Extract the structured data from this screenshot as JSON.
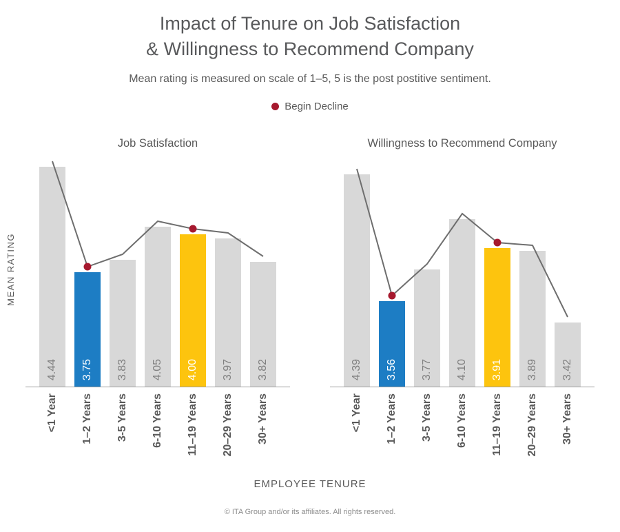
{
  "header": {
    "title_line1": "Impact of Tenure on Job Satisfaction",
    "title_line2": "& Willingness to Recommend Company",
    "subtitle": "Mean rating is measured on scale of 1–5, 5 is the post postitive sentiment."
  },
  "legend": {
    "label": "Begin Decline"
  },
  "axes": {
    "y_label": "MEAN RATING",
    "x_label": "EMPLOYEE TENURE"
  },
  "footer": {
    "copyright": "© ITA Group and/or its affiliates. All rights reserved."
  },
  "colors": {
    "bar_default": "#d8d8d8",
    "bar_blue": "#1d7dc4",
    "bar_yellow": "#fdc40e",
    "line": "#6e6e6e",
    "decline_dot": "#a6192e",
    "axis": "#9b9b9b"
  },
  "chart_data": [
    {
      "type": "bar",
      "title": "Job Satisfaction",
      "categories": [
        "<1 Year",
        "1–2 Years",
        "3-5 Years",
        "6-10 Years",
        "11–19 Years",
        "20–29 Years",
        "30+ Years"
      ],
      "values": [
        4.44,
        3.75,
        3.83,
        4.05,
        4.0,
        3.97,
        3.82
      ],
      "value_labels": [
        "4.44",
        "3.75",
        "3.83",
        "4.05",
        "4.00",
        "3.97",
        "3.82"
      ],
      "bar_styles": [
        "gray",
        "blue",
        "gray",
        "gray",
        "yellow",
        "gray",
        "gray"
      ],
      "decline_points": [
        1,
        4
      ],
      "line_overlay": true,
      "ylim": [
        3.0,
        4.5
      ],
      "grid": false
    },
    {
      "type": "bar",
      "title": "Willingness to Recommend Company",
      "categories": [
        "<1 Year",
        "1–2 Years",
        "3-5 Years",
        "6-10 Years",
        "11–19 Years",
        "20–29 Years",
        "30+ Years"
      ],
      "values": [
        4.39,
        3.56,
        3.77,
        4.1,
        3.91,
        3.89,
        3.42
      ],
      "value_labels": [
        "4.39",
        "3.56",
        "3.77",
        "4.10",
        "3.91",
        "3.89",
        "3.42"
      ],
      "bar_styles": [
        "gray",
        "blue",
        "gray",
        "gray",
        "yellow",
        "gray",
        "gray"
      ],
      "decline_points": [
        1,
        4
      ],
      "line_overlay": true,
      "ylim": [
        3.0,
        4.5
      ],
      "grid": false
    }
  ]
}
